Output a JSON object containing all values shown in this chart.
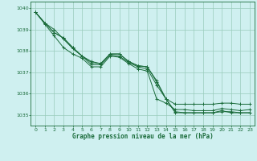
{
  "title": "Graphe pression niveau de la mer (hPa)",
  "bg_color": "#cff0f0",
  "grid_color": "#99ccbb",
  "line_color": "#1a6b3a",
  "xlim": [
    -0.5,
    23.5
  ],
  "ylim": [
    1034.5,
    1040.3
  ],
  "yticks": [
    1035,
    1036,
    1037,
    1038,
    1039,
    1040
  ],
  "xticks": [
    0,
    1,
    2,
    3,
    4,
    5,
    6,
    7,
    8,
    9,
    10,
    11,
    12,
    13,
    14,
    15,
    16,
    17,
    18,
    19,
    20,
    21,
    22,
    23
  ],
  "series": [
    [
      1039.8,
      1039.3,
      1039.0,
      1038.55,
      1038.1,
      1037.75,
      1037.35,
      1037.35,
      1037.8,
      1037.75,
      1037.45,
      1037.25,
      1037.15,
      1036.4,
      1035.75,
      1035.1,
      1035.1,
      1035.1,
      1035.1,
      1035.1,
      1035.15,
      1035.15,
      1035.1,
      1035.1
    ],
    [
      1039.8,
      1039.3,
      1038.85,
      1038.6,
      1038.15,
      1037.75,
      1037.45,
      1037.4,
      1037.85,
      1037.85,
      1037.5,
      1037.3,
      1037.25,
      1036.6,
      1035.75,
      1035.5,
      1035.5,
      1035.5,
      1035.5,
      1035.5,
      1035.55,
      1035.55,
      1035.5,
      1035.5
    ],
    [
      1039.8,
      1039.3,
      1038.85,
      1038.6,
      1038.15,
      1037.75,
      1037.5,
      1037.4,
      1037.85,
      1037.85,
      1037.5,
      1037.3,
      1037.25,
      1036.55,
      1035.75,
      1035.15,
      1035.1,
      1035.1,
      1035.1,
      1035.1,
      1035.2,
      1035.1,
      1035.1,
      1035.1
    ],
    [
      1039.8,
      1039.25,
      1038.7,
      1038.15,
      1037.85,
      1037.65,
      1037.25,
      1037.25,
      1037.75,
      1037.7,
      1037.4,
      1037.15,
      1037.05,
      1035.75,
      1035.55,
      1035.25,
      1035.25,
      1035.2,
      1035.2,
      1035.2,
      1035.3,
      1035.25,
      1035.2,
      1035.25
    ]
  ]
}
